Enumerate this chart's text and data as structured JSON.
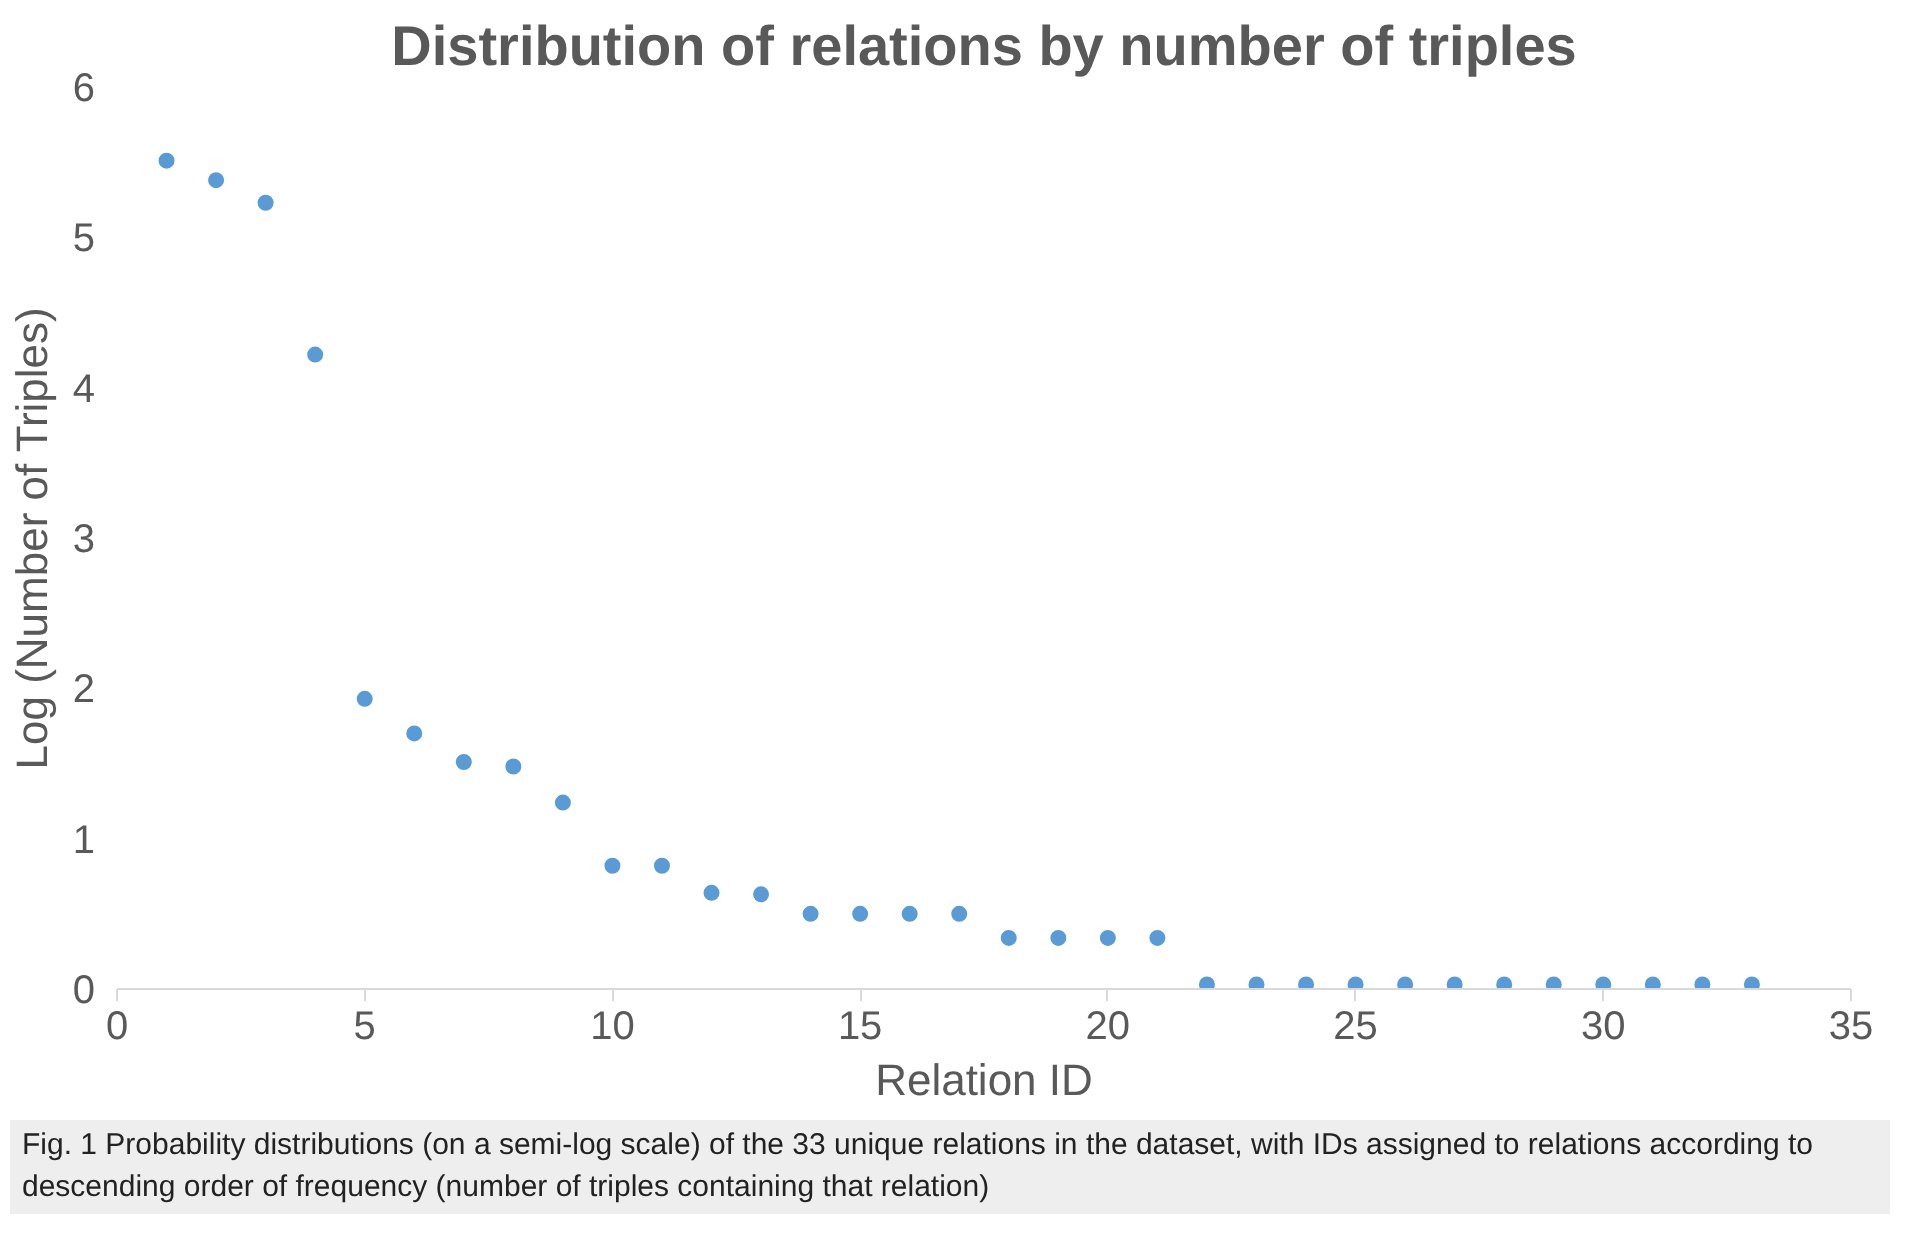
{
  "chart_data": {
    "type": "scatter",
    "title": "Distribution of relations by number of triples",
    "xlabel": "Relation ID",
    "ylabel": "Log (Number of Triples)",
    "x": [
      1,
      2,
      3,
      4,
      5,
      6,
      7,
      8,
      9,
      10,
      11,
      12,
      13,
      14,
      15,
      16,
      17,
      18,
      19,
      20,
      21,
      22,
      23,
      24,
      25,
      26,
      27,
      28,
      29,
      30,
      31,
      32,
      33
    ],
    "series": [
      {
        "color": "#5b9bd5",
        "values": [
          5.51,
          5.38,
          5.23,
          4.22,
          1.93,
          1.7,
          1.51,
          1.48,
          1.24,
          0.82,
          0.82,
          0.64,
          0.63,
          0.5,
          0.5,
          0.5,
          0.5,
          0.34,
          0.34,
          0.34,
          0.34,
          0.03,
          0.03,
          0.03,
          0.03,
          0.03,
          0.03,
          0.03,
          0.03,
          0.03,
          0.03,
          0.03,
          0.03
        ]
      }
    ],
    "xlim": [
      0,
      35
    ],
    "xticks": [
      0,
      5,
      10,
      15,
      20,
      25,
      30,
      35
    ],
    "ylim": [
      0,
      6
    ],
    "yticks": [
      0,
      1,
      2,
      3,
      4,
      5,
      6
    ],
    "grid": false,
    "marker": "circle",
    "annotations": [
      "Fig. 1 Probability distributions (on a semi-log scale) of the 33 unique relations in the dataset, with IDs assigned to relations according to descending order of frequency (number of triples containing that relation)"
    ]
  }
}
